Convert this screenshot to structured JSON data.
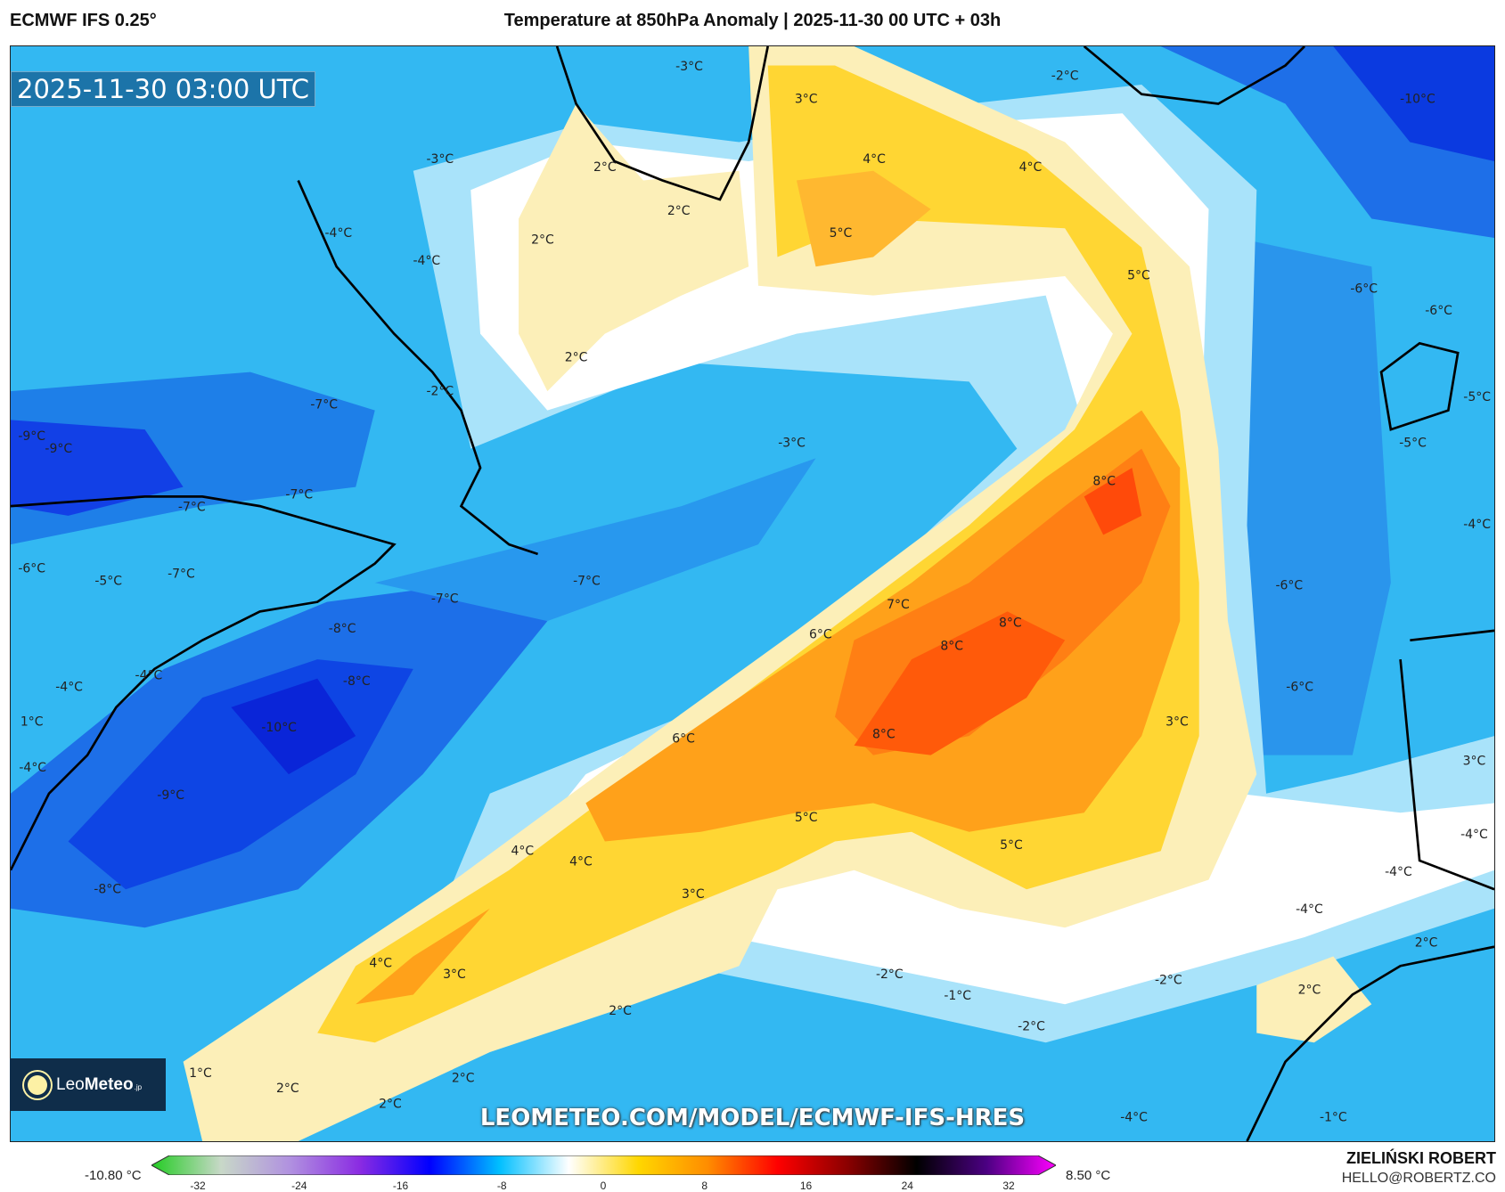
{
  "header": {
    "model": "ECMWF IFS 0.25°",
    "title": "Temperature at 850hPa Anomaly | 2025-11-30 00 UTC + 03h"
  },
  "map": {
    "timestamp": "2025-11-30 03:00 UTC",
    "watermark_url": "LEOMETEO.COM/MODEL/ECMWF-IFS-HRES",
    "labels": [
      "-3°C",
      "-2°C",
      "-10°C",
      "3°C",
      "-3°C",
      "2°C",
      "4°C",
      "4°C",
      "2°C",
      "-4°C",
      "2°C",
      "5°C",
      "-4°C",
      "5°C",
      "-6°C",
      "-6°C",
      "2°C",
      "-2°C",
      "-5°C",
      "-7°C",
      "-9°C",
      "-9°C",
      "-3°C",
      "-5°C",
      "8°C",
      "-7°C",
      "-7°C",
      "-4°C",
      "-6°C",
      "-5°C",
      "-7°C",
      "-7°C",
      "-6°C",
      "-7°C",
      "7°C",
      "8°C",
      "6°C",
      "-8°C",
      "8°C",
      "-4°C",
      "-4°C",
      "-8°C",
      "-6°C",
      "1°C",
      "3°C",
      "-10°C",
      "8°C",
      "6°C",
      "-4°C",
      "3°C",
      "-9°C",
      "5°C",
      "-4°C",
      "5°C",
      "4°C",
      "4°C",
      "-4°C",
      "-8°C",
      "3°C",
      "-4°C",
      "2°C",
      "4°C",
      "3°C",
      "-2°C",
      "-2°C",
      "2°C",
      "-1°C",
      "2°C",
      "-2°C",
      "1°C",
      "2°C",
      "2°C",
      "2°C",
      "-4°C",
      "-1°C"
    ]
  },
  "logo": {
    "brand_light": "Leo",
    "brand_bold": "Meteo",
    "tld": ".jp"
  },
  "colorbar": {
    "min_label": "-10.80 °C",
    "max_label": "8.50 °C",
    "ticks": [
      "-32",
      "-24",
      "-16",
      "-8",
      "0",
      "8",
      "16",
      "24",
      "32"
    ],
    "colors": [
      "#22cc22",
      "#c8d8c8",
      "#b090e0",
      "#8a2be2",
      "#0000ff",
      "#00bfff",
      "#ffffff",
      "#ffd700",
      "#ff8c00",
      "#ff0000",
      "#8b0000",
      "#000000",
      "#4b0082",
      "#ff00ff"
    ]
  },
  "credits": {
    "author": "ZIELIŃSKI ROBERT",
    "email": "HELLO@ROBERTZ.CO"
  }
}
